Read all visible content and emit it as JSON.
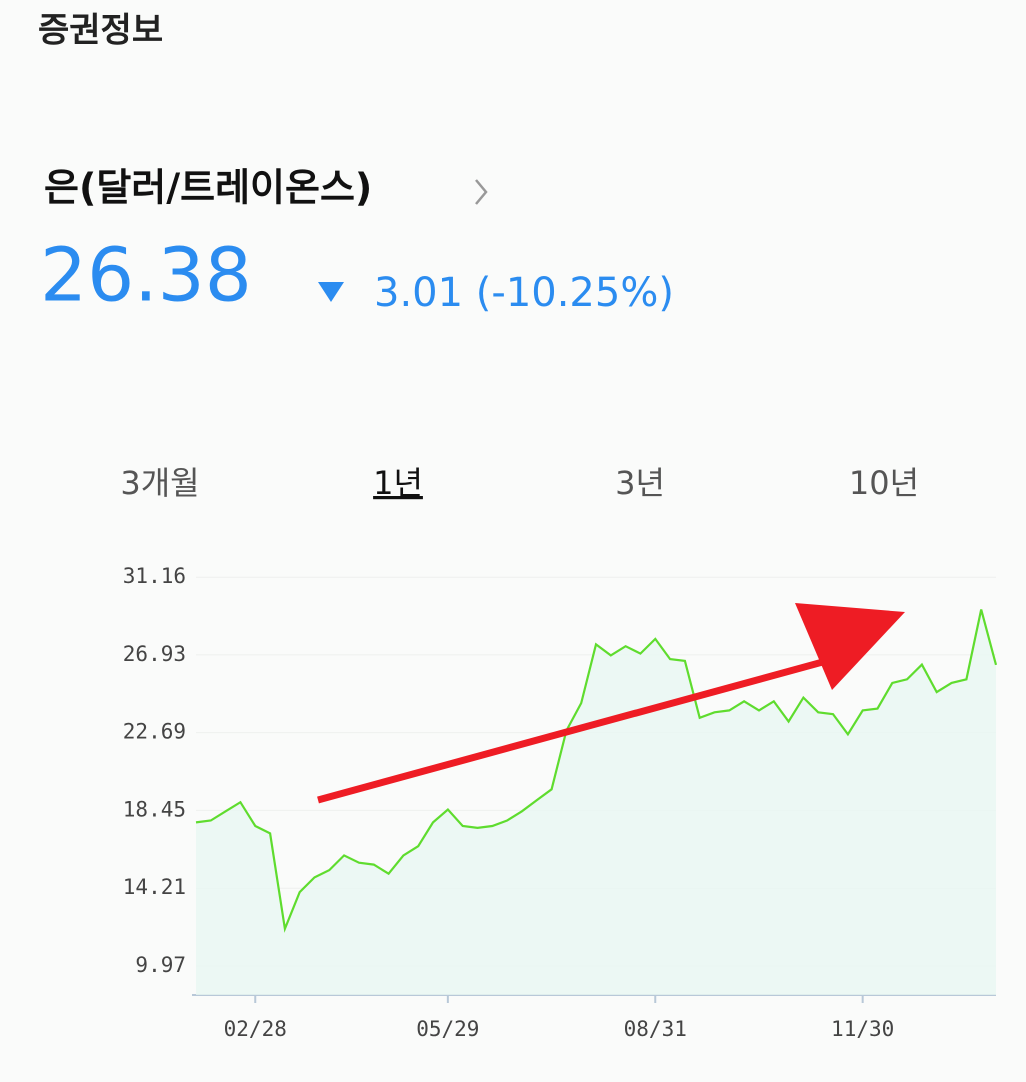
{
  "header": {
    "section": "증권정보",
    "name": "은(달러/트레이온스)",
    "price": "26.38",
    "change": "3.01 (-10.25%)"
  },
  "tabs": [
    "3개월",
    "1년",
    "3년",
    "10년"
  ],
  "selected_tab": 1,
  "chart_data": {
    "type": "line",
    "categories": [
      null,
      null,
      null,
      null,
      "02/28",
      null,
      null,
      null,
      null,
      null,
      null,
      null,
      null,
      null,
      null,
      null,
      null,
      "05/29",
      null,
      null,
      null,
      null,
      null,
      null,
      null,
      null,
      null,
      null,
      null,
      null,
      null,
      "08/31",
      null,
      null,
      null,
      null,
      null,
      null,
      null,
      null,
      null,
      null,
      null,
      null,
      null,
      "11/30",
      null,
      null,
      null,
      null,
      null,
      null,
      null,
      null,
      null
    ],
    "series": [
      {
        "color": "#5fdc2e",
        "values": [
          17.8,
          17.9,
          18.4,
          18.9,
          17.6,
          17.2,
          12.0,
          14.0,
          14.8,
          15.2,
          16.0,
          15.6,
          15.5,
          15.0,
          16.0,
          16.5,
          17.8,
          18.5,
          17.6,
          17.5,
          17.6,
          17.9,
          18.4,
          19.0,
          19.6,
          22.8,
          24.3,
          27.5,
          26.9,
          27.4,
          27.0,
          27.8,
          26.7,
          26.6,
          23.5,
          23.8,
          23.9,
          24.4,
          23.9,
          24.4,
          23.3,
          24.6,
          23.8,
          23.7,
          22.6,
          23.9,
          24.0,
          25.4,
          25.6,
          26.4,
          24.9,
          25.4,
          25.6,
          29.4,
          26.38
        ]
      }
    ],
    "ylim": [
      8.39,
      32.1
    ],
    "yticks": [
      9.97,
      14.21,
      18.45,
      22.69,
      26.93,
      31.16
    ],
    "grid": true
  }
}
